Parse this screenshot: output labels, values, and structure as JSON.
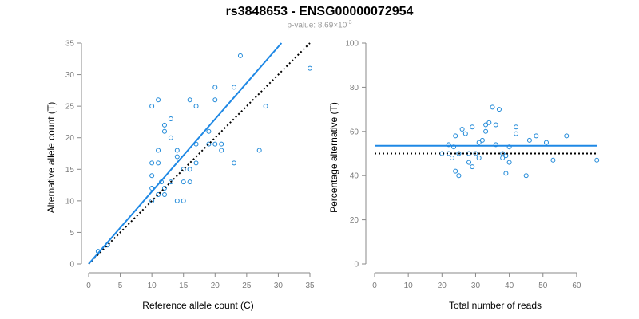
{
  "header": {
    "title": "rs3848653 - ENSG00000072954",
    "pvalue_label": "p-value: 8.69",
    "pvalue_base": "×10",
    "pvalue_exp": "-3"
  },
  "chart_data": [
    {
      "type": "scatter",
      "id": "left",
      "xlabel": "Reference allele count (C)",
      "ylabel": "Alternative allele count (T)",
      "xlim": [
        0,
        35
      ],
      "ylim": [
        0,
        35
      ],
      "xticks": [
        0,
        5,
        10,
        15,
        20,
        25,
        30,
        35
      ],
      "yticks": [
        0,
        5,
        10,
        15,
        20,
        25,
        30,
        35
      ],
      "points": [
        [
          1.5,
          2
        ],
        [
          3,
          3
        ],
        [
          10,
          10
        ],
        [
          10,
          12
        ],
        [
          10,
          14
        ],
        [
          10,
          16
        ],
        [
          10,
          25
        ],
        [
          11,
          11
        ],
        [
          11,
          16
        ],
        [
          11,
          18
        ],
        [
          11,
          26
        ],
        [
          11.5,
          13
        ],
        [
          12,
          11
        ],
        [
          12,
          12
        ],
        [
          12,
          21
        ],
        [
          12,
          22
        ],
        [
          13,
          13
        ],
        [
          13,
          20
        ],
        [
          13,
          23
        ],
        [
          14,
          10
        ],
        [
          14,
          17
        ],
        [
          14,
          18
        ],
        [
          15,
          10
        ],
        [
          15,
          13
        ],
        [
          15,
          15
        ],
        [
          16,
          13
        ],
        [
          16,
          15
        ],
        [
          16,
          26
        ],
        [
          17,
          16
        ],
        [
          17,
          19
        ],
        [
          17,
          25
        ],
        [
          19,
          19
        ],
        [
          19,
          21
        ],
        [
          20,
          19
        ],
        [
          20,
          26
        ],
        [
          20,
          28
        ],
        [
          21,
          18
        ],
        [
          21,
          19
        ],
        [
          23,
          16
        ],
        [
          23,
          28
        ],
        [
          24,
          33
        ],
        [
          27,
          18
        ],
        [
          28,
          25
        ],
        [
          35,
          31
        ]
      ],
      "fit_line": {
        "x": [
          0,
          30.5
        ],
        "y": [
          0,
          35
        ],
        "color": "#1e88e5"
      },
      "reference_line": {
        "x": [
          0,
          35
        ],
        "y": [
          0,
          35
        ],
        "style": "dotted"
      }
    },
    {
      "type": "scatter",
      "id": "right",
      "xlabel": "Total number of reads",
      "ylabel": "Percentage alternative (T)",
      "xlim": [
        0,
        65
      ],
      "ylim": [
        0,
        100
      ],
      "xticks": [
        0,
        10,
        20,
        30,
        40,
        50,
        60
      ],
      "yticks": [
        0,
        20,
        40,
        60,
        80,
        100
      ],
      "points": [
        [
          20,
          50
        ],
        [
          22,
          50
        ],
        [
          22,
          54
        ],
        [
          23,
          48
        ],
        [
          23.5,
          53
        ],
        [
          24,
          42
        ],
        [
          24,
          58
        ],
        [
          25,
          40
        ],
        [
          25,
          50
        ],
        [
          26,
          61
        ],
        [
          27,
          59
        ],
        [
          28,
          50
        ],
        [
          28,
          46
        ],
        [
          29,
          62
        ],
        [
          29,
          44
        ],
        [
          30,
          50
        ],
        [
          31,
          48
        ],
        [
          31,
          55
        ],
        [
          32,
          56
        ],
        [
          33,
          63
        ],
        [
          33,
          60
        ],
        [
          34,
          64
        ],
        [
          35,
          71
        ],
        [
          36,
          54
        ],
        [
          36,
          63
        ],
        [
          37,
          70
        ],
        [
          38,
          50
        ],
        [
          38,
          48
        ],
        [
          39,
          49
        ],
        [
          39,
          41
        ],
        [
          40,
          53
        ],
        [
          40,
          46
        ],
        [
          42,
          62
        ],
        [
          42,
          59
        ],
        [
          45,
          40
        ],
        [
          46,
          56
        ],
        [
          48,
          58
        ],
        [
          51,
          55
        ],
        [
          53,
          47
        ],
        [
          57,
          58
        ],
        [
          66,
          47
        ]
      ],
      "fit_line": {
        "x": [
          0,
          66
        ],
        "y": [
          53.5,
          53.5
        ],
        "color": "#1e88e5"
      },
      "reference_line": {
        "x": [
          0,
          66
        ],
        "y": [
          50,
          50
        ],
        "style": "dotted"
      }
    }
  ]
}
